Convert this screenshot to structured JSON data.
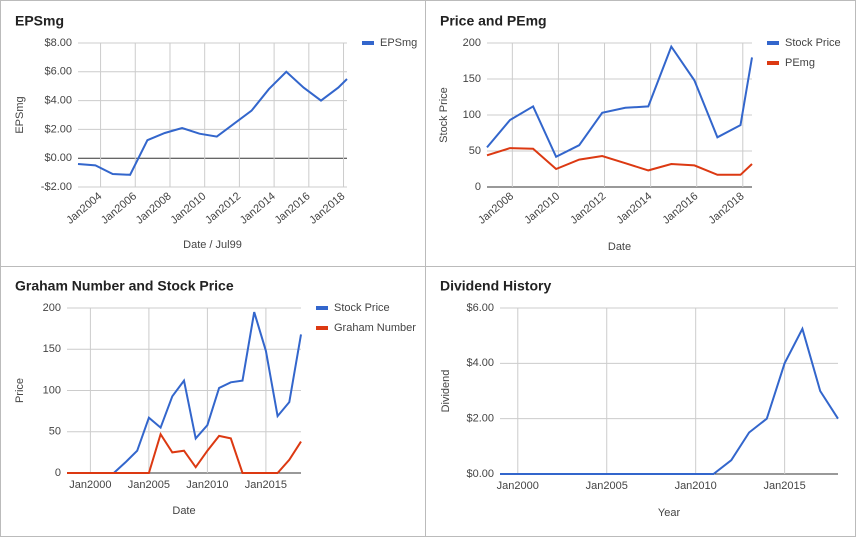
{
  "chart_data": [
    {
      "type": "line",
      "title": "EPSmg",
      "x_label": "Date / Jul99",
      "y_label": "EPSmg",
      "legend": "right",
      "grid": true,
      "x": [
        2002.7,
        2003.7,
        2004.7,
        2005.7,
        2006.7,
        2007.7,
        2008.7,
        2009.7,
        2010.7,
        2011.7,
        2012.7,
        2013.7,
        2014.7,
        2015.7,
        2016.7,
        2017.7,
        2018.2
      ],
      "series": [
        {
          "name": "EPSmg",
          "color": "#3366cc",
          "values": [
            -0.4,
            -0.5,
            -1.1,
            -1.15,
            1.25,
            1.75,
            2.1,
            1.7,
            1.5,
            2.4,
            3.3,
            4.8,
            6.0,
            4.9,
            4.0,
            4.9,
            5.5
          ]
        }
      ],
      "xlim": [
        2002.7,
        2018.2
      ],
      "xticks": [
        {
          "value": 2004,
          "label": "Jan2004"
        },
        {
          "value": 2006,
          "label": "Jan2006"
        },
        {
          "value": 2008,
          "label": "Jan2008"
        },
        {
          "value": 2010,
          "label": "Jan2010"
        },
        {
          "value": 2012,
          "label": "Jan2012"
        },
        {
          "value": 2014,
          "label": "Jan2014"
        },
        {
          "value": 2016,
          "label": "Jan2016"
        },
        {
          "value": 2018,
          "label": "Jan2018"
        }
      ],
      "ylim": [
        -2,
        8
      ],
      "yticks": [
        {
          "value": -2,
          "label": "-$2.00"
        },
        {
          "value": 0,
          "label": "$0.00"
        },
        {
          "value": 2,
          "label": "$2.00"
        },
        {
          "value": 4,
          "label": "$4.00"
        },
        {
          "value": 6,
          "label": "$6.00"
        },
        {
          "value": 8,
          "label": "$8.00"
        }
      ]
    },
    {
      "type": "line",
      "title": "Price and PEmg",
      "x_label": "Date",
      "y_label": "Stock Price",
      "legend": "right",
      "grid": true,
      "x": [
        2006.9,
        2007.9,
        2008.9,
        2009.9,
        2010.9,
        2011.9,
        2012.9,
        2013.9,
        2014.9,
        2015.9,
        2016.9,
        2017.9,
        2018.4
      ],
      "series": [
        {
          "name": "Stock Price",
          "color": "#3366cc",
          "values": [
            55,
            93,
            112,
            42,
            58,
            103,
            110,
            112,
            195,
            148,
            69,
            86,
            180
          ]
        },
        {
          "name": "PEmg",
          "color": "#dc3912",
          "values": [
            44,
            54,
            53,
            25,
            38,
            43,
            33,
            23,
            32,
            30,
            17,
            17,
            32
          ]
        }
      ],
      "xlim": [
        2006.9,
        2018.4
      ],
      "xticks": [
        {
          "value": 2008,
          "label": "Jan2008"
        },
        {
          "value": 2010,
          "label": "Jan2010"
        },
        {
          "value": 2012,
          "label": "Jan2012"
        },
        {
          "value": 2014,
          "label": "Jan2014"
        },
        {
          "value": 2016,
          "label": "Jan2016"
        },
        {
          "value": 2018,
          "label": "Jan2018"
        }
      ],
      "ylim": [
        0,
        200
      ],
      "yticks": [
        0,
        50,
        100,
        150,
        200
      ]
    },
    {
      "type": "line",
      "title": "Graham Number and Stock Price",
      "x_label": "Date",
      "y_label": "Price",
      "legend": "right",
      "grid": true,
      "x": [
        1998,
        1999,
        2000,
        2001,
        2002,
        2003,
        2004,
        2005,
        2006,
        2007,
        2008,
        2009,
        2010,
        2011,
        2012,
        2013,
        2014,
        2015,
        2016,
        2017,
        2018
      ],
      "series": [
        {
          "name": "Stock Price",
          "color": "#3366cc",
          "values": [
            0,
            0,
            0,
            0,
            0,
            13,
            27,
            67,
            55,
            93,
            112,
            42,
            58,
            103,
            110,
            112,
            195,
            148,
            69,
            86,
            168
          ]
        },
        {
          "name": "Graham Number",
          "color": "#dc3912",
          "values": [
            0,
            0,
            0,
            0,
            0,
            0,
            0,
            0,
            47,
            25,
            27,
            7,
            27,
            45,
            42,
            0,
            0,
            0,
            0,
            16,
            38
          ]
        }
      ],
      "xlim": [
        1998,
        2018
      ],
      "xticks": [
        {
          "value": 2000,
          "label": "Jan2000"
        },
        {
          "value": 2005,
          "label": "Jan2005"
        },
        {
          "value": 2010,
          "label": "Jan2010"
        },
        {
          "value": 2015,
          "label": "Jan2015"
        }
      ],
      "ylim": [
        0,
        200
      ],
      "yticks": [
        0,
        50,
        100,
        150,
        200
      ]
    },
    {
      "type": "line",
      "title": "Dividend History",
      "x_label": "Year",
      "y_label": "Dividend",
      "grid": true,
      "x": [
        1999,
        2000,
        2001,
        2002,
        2003,
        2004,
        2005,
        2006,
        2007,
        2008,
        2009,
        2010,
        2011,
        2012,
        2013,
        2014,
        2015,
        2016,
        2017,
        2018
      ],
      "series": [
        {
          "color": "#3366cc",
          "values": [
            0,
            0,
            0,
            0,
            0,
            0,
            0,
            0,
            0,
            0,
            0,
            0,
            0,
            0.5,
            1.5,
            2.0,
            4.0,
            5.25,
            3.0,
            2.0
          ]
        }
      ],
      "xlim": [
        1999,
        2018
      ],
      "xticks": [
        {
          "value": 2000,
          "label": "Jan2000"
        },
        {
          "value": 2005,
          "label": "Jan2005"
        },
        {
          "value": 2010,
          "label": "Jan2010"
        },
        {
          "value": 2015,
          "label": "Jan2015"
        }
      ],
      "ylim": [
        0,
        6
      ],
      "yticks": [
        {
          "value": 0,
          "label": "$0.00"
        },
        {
          "value": 2,
          "label": "$2.00"
        },
        {
          "value": 4,
          "label": "$4.00"
        },
        {
          "value": 6,
          "label": "$6.00"
        }
      ]
    }
  ]
}
